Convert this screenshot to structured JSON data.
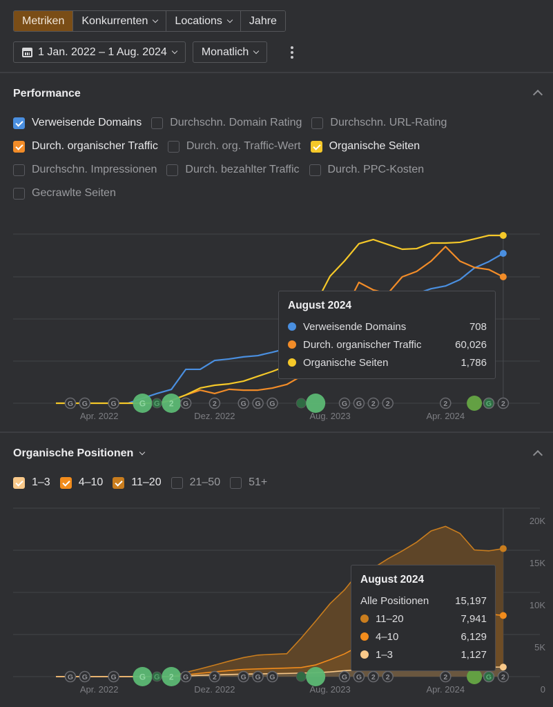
{
  "toolbar": {
    "tabs": [
      {
        "label": "Metriken",
        "active": true,
        "dropdown": false
      },
      {
        "label": "Konkurrenten",
        "active": false,
        "dropdown": true
      },
      {
        "label": "Locations",
        "active": false,
        "dropdown": true
      },
      {
        "label": "Jahre",
        "active": false,
        "dropdown": false
      }
    ],
    "date_range": "1 Jan. 2022 – 1 Aug. 2024",
    "interval": "Monatlich",
    "more_icon": "kebab-vertical-icon",
    "calendar_icon": "calendar-icon"
  },
  "performance": {
    "title": "Performance",
    "collapse_icon": "chevron-up-icon",
    "metrics": [
      {
        "label": "Verweisende Domains",
        "checked": true,
        "color": "#4a8fe0"
      },
      {
        "label": "Durchschn. Domain Rating",
        "checked": false
      },
      {
        "label": "Durchschn. URL-Rating",
        "checked": false
      },
      {
        "label": "Durch. organischer Traffic",
        "checked": true,
        "color": "#f28c28"
      },
      {
        "label": "Durch. org. Traffic-Wert",
        "checked": false
      },
      {
        "label": "Organische Seiten",
        "checked": true,
        "color": "#f5c829"
      },
      {
        "label": "Durchschn. Impressionen",
        "checked": false
      },
      {
        "label": "Durch. bezahlter Traffic",
        "checked": false
      },
      {
        "label": "Durch. PPC-Kosten",
        "checked": false
      },
      {
        "label": "Gecrawlte Seiten",
        "checked": false
      }
    ],
    "tooltip": {
      "title": "August 2024",
      "rows": [
        {
          "name": "Verweisende Domains",
          "value": "708",
          "color": "#4a8fe0"
        },
        {
          "name": "Durch. organischer Traffic",
          "value": "60,026",
          "color": "#f28c28"
        },
        {
          "name": "Organische Seiten",
          "value": "1,786",
          "color": "#f5c829"
        }
      ]
    }
  },
  "positions": {
    "title": "Organische Positionen",
    "collapse_icon": "chevron-up-icon",
    "filters": [
      {
        "label": "1–3",
        "checked": true,
        "color": "#f9c98a"
      },
      {
        "label": "4–10",
        "checked": true,
        "color": "#f28c1c"
      },
      {
        "label": "11–20",
        "checked": true,
        "color": "#c97d1e"
      },
      {
        "label": "21–50",
        "checked": false
      },
      {
        "label": "51+",
        "checked": false
      }
    ],
    "tooltip": {
      "title": "August 2024",
      "total_label": "Alle Positionen",
      "total_value": "15,197",
      "rows": [
        {
          "name": "11–20",
          "value": "7,941",
          "color": "#c97d1e"
        },
        {
          "name": "4–10",
          "value": "6,129",
          "color": "#f28c1c"
        },
        {
          "name": "1–3",
          "value": "1,127",
          "color": "#f9c98a"
        }
      ]
    }
  },
  "chart_data": [
    {
      "type": "line",
      "title": "Performance",
      "x": [
        "2022-01",
        "2022-02",
        "2022-03",
        "2022-04",
        "2022-05",
        "2022-06",
        "2022-07",
        "2022-08",
        "2022-09",
        "2022-10",
        "2022-11",
        "2022-12",
        "2023-01",
        "2023-02",
        "2023-03",
        "2023-04",
        "2023-05",
        "2023-06",
        "2023-07",
        "2023-08",
        "2023-09",
        "2023-10",
        "2023-11",
        "2023-12",
        "2024-01",
        "2024-02",
        "2024-03",
        "2024-04",
        "2024-05",
        "2024-06",
        "2024-07",
        "2024-08"
      ],
      "x_tick_labels": [
        {
          "index": 3,
          "label": "Apr. 2022"
        },
        {
          "index": 11,
          "label": "Dez. 2022"
        },
        {
          "index": 19,
          "label": "Aug. 2023"
        },
        {
          "index": 27,
          "label": "Apr. 2024"
        }
      ],
      "independent_y_scales": true,
      "grid": true,
      "series": [
        {
          "name": "Verweisende Domains",
          "color": "#4a8fe0",
          "start_index": 5,
          "values": [
            0,
            0,
            0,
            0,
            0,
            0,
            23,
            46,
            65,
            160,
            160,
            202,
            209,
            219,
            225,
            241,
            258,
            274,
            290,
            313,
            339,
            372,
            404,
            443,
            479,
            518,
            541,
            554,
            584,
            639,
            669,
            708
          ]
        },
        {
          "name": "Durch. organischer Traffic",
          "color": "#f28c28",
          "start_index": 7,
          "values": [
            0,
            0,
            0,
            0,
            0,
            0,
            0,
            0,
            1300,
            3900,
            6200,
            4600,
            6600,
            6200,
            6200,
            7200,
            8900,
            12800,
            21000,
            34000,
            44000,
            57400,
            53800,
            52100,
            60026,
            62600,
            67500,
            74400,
            67500,
            64500,
            63500,
            60026
          ]
        },
        {
          "name": "Organische Seiten",
          "color": "#f5c829",
          "start_index": 0,
          "values": [
            0,
            0,
            0,
            0,
            0,
            0,
            0,
            0,
            29,
            88,
            162,
            191,
            206,
            235,
            287,
            338,
            397,
            529,
            1058,
            1352,
            1514,
            1698,
            1742,
            1690,
            1639,
            1646,
            1705,
            1705,
            1713,
            1749,
            1786,
            1786
          ]
        }
      ],
      "event_markers": [
        {
          "index": 1,
          "label": "G",
          "type": "google-update"
        },
        {
          "index": 2,
          "label": "G",
          "type": "google-update"
        },
        {
          "index": 4,
          "label": "G",
          "type": "google-update"
        },
        {
          "index": 6,
          "label": "G",
          "type": "highlight-large"
        },
        {
          "index": 7,
          "label": "G",
          "type": "highlight-small-dark"
        },
        {
          "index": 8,
          "label": "2",
          "type": "highlight-large"
        },
        {
          "index": 9,
          "label": "G",
          "type": "google-update"
        },
        {
          "index": 11,
          "label": "2",
          "type": "annotation"
        },
        {
          "index": 13,
          "label": "G",
          "type": "google-update"
        },
        {
          "index": 14,
          "label": "G",
          "type": "google-update"
        },
        {
          "index": 15,
          "label": "G",
          "type": "google-update"
        },
        {
          "index": 17,
          "label": "",
          "type": "highlight-small-dark"
        },
        {
          "index": 18,
          "label": "",
          "type": "highlight-large"
        },
        {
          "index": 20,
          "label": "G",
          "type": "google-update"
        },
        {
          "index": 21,
          "label": "G",
          "type": "google-update"
        },
        {
          "index": 22,
          "label": "2",
          "type": "annotation"
        },
        {
          "index": 23,
          "label": "2",
          "type": "annotation"
        },
        {
          "index": 27,
          "label": "2",
          "type": "annotation"
        },
        {
          "index": 29,
          "label": "",
          "type": "highlight-olive"
        },
        {
          "index": 30,
          "label": "G",
          "type": "google-dark"
        },
        {
          "index": 31,
          "label": "2",
          "type": "annotation"
        }
      ]
    },
    {
      "type": "area",
      "title": "Organische Positionen",
      "stacked": true,
      "ylim": [
        0,
        20000
      ],
      "y_ticks": [
        {
          "value": 0,
          "label": "0"
        },
        {
          "value": 5000,
          "label": "5K"
        },
        {
          "value": 10000,
          "label": "10K"
        },
        {
          "value": 15000,
          "label": "15K"
        },
        {
          "value": 20000,
          "label": "20K"
        }
      ],
      "grid": true,
      "series": [
        {
          "name": "1–3",
          "color": "#f9c98a",
          "values": [
            0,
            0,
            0,
            0,
            0,
            0,
            0,
            0,
            0,
            80,
            160,
            200,
            250,
            300,
            320,
            350,
            380,
            420,
            470,
            560,
            700,
            820,
            900,
            980,
            1020,
            1060,
            1100,
            1140,
            1160,
            1140,
            1130,
            1127
          ]
        },
        {
          "name": "4–10",
          "color": "#f28c1c",
          "values": [
            0,
            0,
            0,
            0,
            0,
            0,
            0,
            0,
            0,
            120,
            240,
            370,
            470,
            560,
            600,
            620,
            640,
            660,
            920,
            1450,
            2000,
            2800,
            3500,
            4300,
            5000,
            5600,
            6300,
            6900,
            6800,
            6400,
            6300,
            6129
          ]
        },
        {
          "name": "11–20",
          "color": "#c97d1e",
          "values": [
            0,
            0,
            0,
            0,
            0,
            0,
            0,
            0,
            0,
            300,
            520,
            800,
            1120,
            1400,
            1640,
            1680,
            1700,
            3500,
            5200,
            6650,
            7600,
            8800,
            8500,
            8700,
            8900,
            9300,
            9900,
            9800,
            9050,
            7500,
            7500,
            7941
          ]
        }
      ],
      "x_tick_labels": [
        {
          "index": 3,
          "label": "Apr. 2022"
        },
        {
          "index": 11,
          "label": "Dez. 2022"
        },
        {
          "index": 19,
          "label": "Aug. 2023"
        },
        {
          "index": 27,
          "label": "Apr. 2024"
        }
      ]
    }
  ]
}
